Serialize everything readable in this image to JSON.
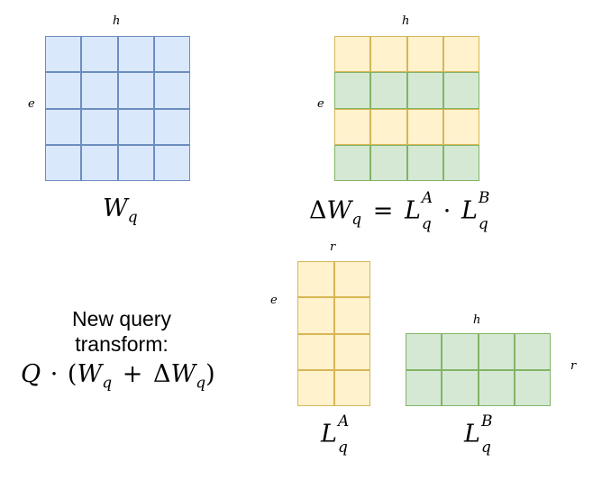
{
  "diagram": {
    "wq": {
      "rows": 4,
      "cols": 4,
      "h_label": "h",
      "e_label": "e",
      "name": "W",
      "sub": "q"
    },
    "delta": {
      "rows": 4,
      "cols": 4,
      "h_label": "h",
      "e_label": "e",
      "row_colors": [
        "yellow",
        "green",
        "yellow",
        "green"
      ],
      "equation": {
        "delta": "Δ",
        "w": "W",
        "w_sub": "q",
        "eq": "=",
        "la": "L",
        "la_sup": "A",
        "la_sub": "q",
        "dot": "·",
        "lb": "L",
        "lb_sup": "B",
        "lb_sub": "q"
      }
    },
    "la": {
      "rows": 4,
      "cols": 2,
      "r_label": "r",
      "e_label": "e",
      "color": "yellow",
      "name": "L",
      "sup": "A",
      "sub": "q"
    },
    "lb": {
      "rows": 2,
      "cols": 4,
      "h_label": "h",
      "r_label": "r",
      "color": "green",
      "name": "L",
      "sup": "B",
      "sub": "q"
    },
    "new_query": {
      "line1": "New query",
      "line2": "transform:",
      "formula": {
        "q": "Q",
        "dot": "·",
        "open": "(",
        "w": "W",
        "w_sub": "q",
        "plus": "+",
        "delta": "Δ",
        "dw": "W",
        "dw_sub": "q",
        "close": ")"
      }
    }
  }
}
